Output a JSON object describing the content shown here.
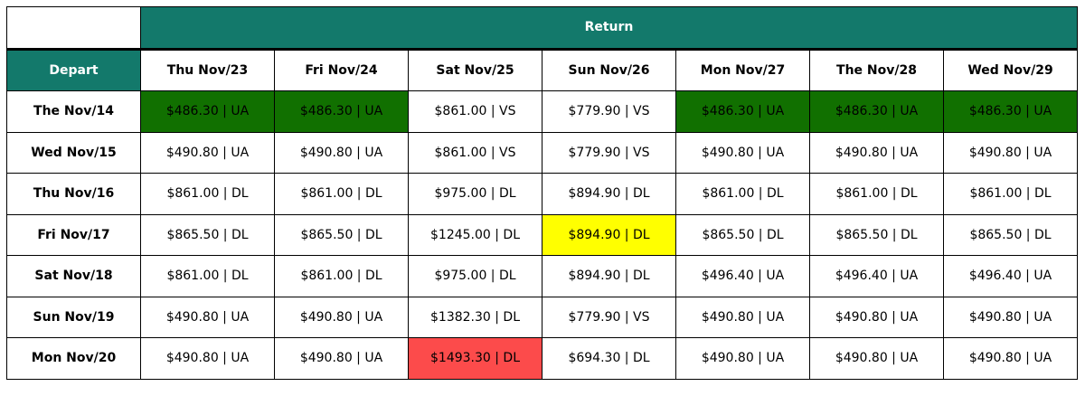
{
  "header": {
    "return_label": "Return",
    "depart_label": "Depart"
  },
  "colors": {
    "header": "#13796B",
    "cheapest": "#117000",
    "highlight": "#ffff00",
    "most_expensive": "#fc4b4b"
  },
  "return_dates": [
    "Thu Nov/23",
    "Fri Nov/24",
    "Sat Nov/25",
    "Sun Nov/26",
    "Mon Nov/27",
    "The Nov/28",
    "Wed Nov/29"
  ],
  "rows": [
    {
      "depart": "The Nov/14",
      "cells": [
        "$486.30 | UA",
        "$486.30 | UA",
        "$861.00 | VS",
        "$779.90 | VS",
        "$486.30 | UA",
        "$486.30 | UA",
        "$486.30 | UA"
      ],
      "hl": [
        "green",
        "green",
        "",
        "",
        "green",
        "green",
        "green"
      ]
    },
    {
      "depart": "Wed Nov/15",
      "cells": [
        "$490.80 | UA",
        "$490.80 | UA",
        "$861.00 | VS",
        "$779.90 | VS",
        "$490.80 | UA",
        "$490.80 | UA",
        "$490.80 | UA"
      ],
      "hl": [
        "",
        "",
        "",
        "",
        "",
        "",
        ""
      ]
    },
    {
      "depart": "Thu Nov/16",
      "cells": [
        "$861.00 | DL",
        "$861.00 | DL",
        "$975.00 | DL",
        "$894.90 | DL",
        "$861.00 | DL",
        "$861.00 | DL",
        "$861.00 | DL"
      ],
      "hl": [
        "",
        "",
        "",
        "",
        "",
        "",
        ""
      ]
    },
    {
      "depart": "Fri Nov/17",
      "cells": [
        "$865.50 | DL",
        "$865.50 | DL",
        "$1245.00 | DL",
        "$894.90 | DL",
        "$865.50 | DL",
        "$865.50 | DL",
        "$865.50 | DL"
      ],
      "hl": [
        "",
        "",
        "",
        "yellow",
        "",
        "",
        ""
      ]
    },
    {
      "depart": "Sat Nov/18",
      "cells": [
        "$861.00 | DL",
        "$861.00 | DL",
        "$975.00 | DL",
        "$894.90 | DL",
        "$496.40 | UA",
        "$496.40 | UA",
        "$496.40 | UA"
      ],
      "hl": [
        "",
        "",
        "",
        "",
        "",
        "",
        ""
      ]
    },
    {
      "depart": "Sun Nov/19",
      "cells": [
        "$490.80 | UA",
        "$490.80 | UA",
        "$1382.30 | DL",
        "$779.90 | VS",
        "$490.80 | UA",
        "$490.80 | UA",
        "$490.80 | UA"
      ],
      "hl": [
        "",
        "",
        "",
        "",
        "",
        "",
        ""
      ]
    },
    {
      "depart": "Mon Nov/20",
      "cells": [
        "$490.80 | UA",
        "$490.80 | UA",
        "$1493.30 | DL",
        "$694.30 | DL",
        "$490.80 | UA",
        "$490.80 | UA",
        "$490.80 | UA"
      ],
      "hl": [
        "",
        "",
        "red",
        "",
        "",
        "",
        ""
      ]
    }
  ]
}
